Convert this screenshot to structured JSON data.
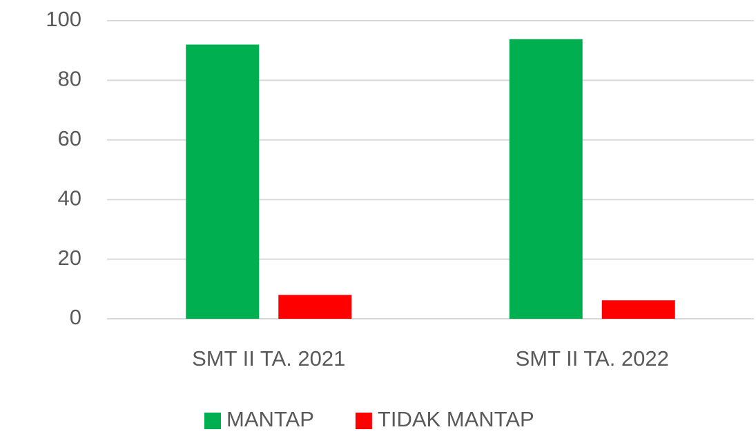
{
  "chart_data": {
    "type": "bar",
    "categories": [
      "SMT II TA. 2021",
      "SMT II TA. 2022"
    ],
    "series": [
      {
        "name": "MANTAP",
        "color": "#00b050",
        "values": [
          92,
          93.8
        ]
      },
      {
        "name": "TIDAK MANTAP",
        "color": "#ff0000",
        "values": [
          8,
          6.2
        ]
      }
    ],
    "ylim": [
      0,
      100
    ],
    "yticks": [
      0,
      20,
      40,
      60,
      80,
      100
    ],
    "grid": true,
    "legend": "bottom"
  }
}
